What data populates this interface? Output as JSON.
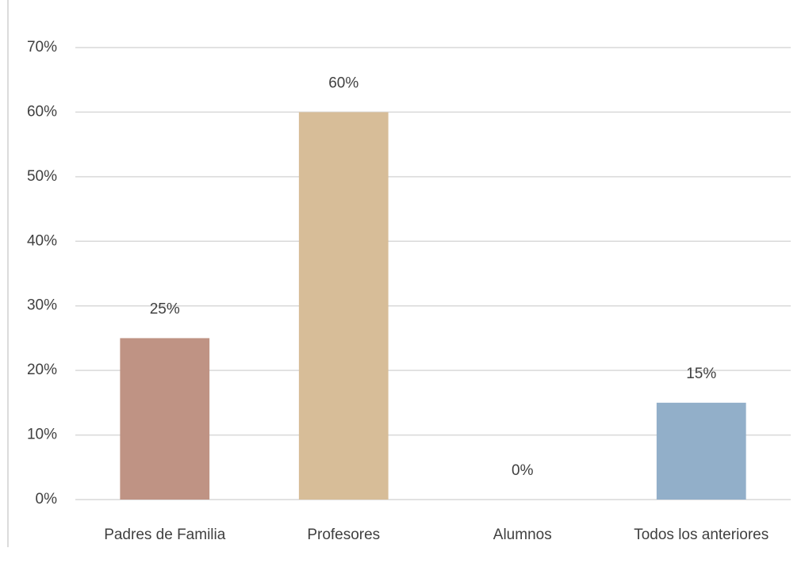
{
  "chart_data": {
    "type": "bar",
    "categories": [
      "Padres de Familia",
      "Profesores",
      "Alumnos",
      "Todos los anteriores"
    ],
    "values": [
      25,
      60,
      0,
      15
    ],
    "value_labels": [
      "25%",
      "60%",
      "0%",
      "15%"
    ],
    "colors": [
      "#bf9384",
      "#d7bd98",
      "#ece9e0",
      "#92afc9"
    ],
    "ylim": [
      0,
      70
    ],
    "yticks": [
      {
        "value": 0,
        "label": "0%"
      },
      {
        "value": 10,
        "label": "10%"
      },
      {
        "value": 20,
        "label": "20%"
      },
      {
        "value": 30,
        "label": "30%"
      },
      {
        "value": 40,
        "label": "40%"
      },
      {
        "value": 50,
        "label": "50%"
      },
      {
        "value": 60,
        "label": "60%"
      },
      {
        "value": 70,
        "label": "70%"
      }
    ],
    "grid": true
  }
}
